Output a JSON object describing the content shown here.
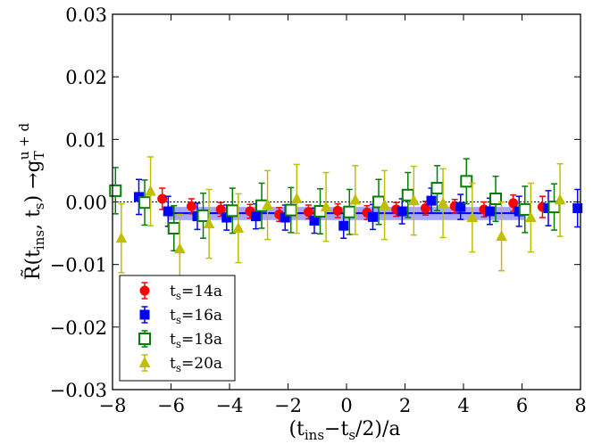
{
  "chart_data": {
    "type": "scatter",
    "title": "",
    "xlabel": "(t_ins−t_s/2)/a",
    "ylabel": "R̃(t_ins, t_s) → g_T^{u+d}",
    "xlabel_main": "(t",
    "xlabel_sub1": "ins",
    "xlabel_mid": "−t",
    "xlabel_sub2": "s",
    "xlabel_tail": "/2)/a",
    "ylabel_main": "R̃(t",
    "ylabel_sub1": "ins",
    "ylabel_mid": ", t",
    "ylabel_sub2": "s",
    "ylabel_tail": ") →g",
    "ylabel_subT": "T",
    "ylabel_sup": "u + d",
    "xlim": [
      -8,
      8
    ],
    "ylim": [
      -0.03,
      0.03
    ],
    "xticks": [
      -8,
      -6,
      -4,
      -2,
      0,
      2,
      4,
      6,
      8
    ],
    "xtick_labels": [
      "−8",
      "−6",
      "−4",
      "−2",
      "0",
      "2",
      "4",
      "6",
      "8"
    ],
    "yticks": [
      -0.03,
      -0.02,
      -0.01,
      0.0,
      0.01,
      0.02,
      0.03
    ],
    "ytick_labels": [
      "−0.03",
      "−0.02",
      "−0.01",
      "0.00",
      "0.01",
      "0.02",
      "0.03"
    ],
    "reference_line_y": 0.0,
    "fit_band": {
      "x_range": [
        -6.1,
        6.1
      ],
      "center": -0.0018,
      "lower": -0.0029,
      "upper": -0.0008,
      "color": "#0000ff"
    },
    "legend_position": "lower-left",
    "series": [
      {
        "name": "t_s=14a",
        "legend_main": "t",
        "legend_sub": "s",
        "legend_tail": "=14a",
        "marker": "circle",
        "color": "#ff0000",
        "filled": true,
        "x": [
          -6,
          -5,
          -4,
          -3,
          -2,
          -1,
          0,
          1,
          2,
          3,
          4,
          5,
          6,
          7
        ],
        "y": [
          0.0005,
          -0.0007,
          -0.0012,
          -0.0015,
          -0.002,
          -0.0016,
          -0.0014,
          -0.0017,
          -0.0012,
          -0.001,
          -0.0007,
          -0.0012,
          -0.0002,
          -0.0008
        ],
        "err": [
          0.0017,
          0.0012,
          0.0011,
          0.0011,
          0.0011,
          0.0011,
          0.0011,
          0.0011,
          0.0011,
          0.0011,
          0.0011,
          0.0012,
          0.0013,
          0.0017
        ]
      },
      {
        "name": "t_s=16a",
        "legend_main": "t",
        "legend_sub": "s",
        "legend_tail": "=16a",
        "marker": "square",
        "color": "#0000ff",
        "filled": true,
        "x": [
          -7,
          -6,
          -5,
          -4,
          -3,
          -2,
          -1,
          0,
          1,
          2,
          3,
          4,
          5,
          6,
          7,
          8
        ],
        "y": [
          0.0008,
          -0.0015,
          -0.0023,
          -0.0025,
          -0.0023,
          -0.0025,
          -0.003,
          -0.0038,
          -0.0024,
          -0.0015,
          0.0002,
          -0.0008,
          -0.0015,
          -0.0015,
          -0.001,
          -0.001
        ],
        "err": [
          0.0028,
          0.0024,
          0.0021,
          0.002,
          0.002,
          0.002,
          0.002,
          0.002,
          0.002,
          0.002,
          0.002,
          0.002,
          0.0021,
          0.0024,
          0.0028,
          0.003
        ]
      },
      {
        "name": "t_s=18a",
        "legend_main": "t",
        "legend_sub": "s",
        "legend_tail": "=18a",
        "marker": "square",
        "color": "#007f00",
        "filled": false,
        "x": [
          -8,
          -7,
          -6,
          -5,
          -4,
          -3,
          -2,
          -1,
          0,
          1,
          2,
          3,
          4,
          5,
          6,
          7
        ],
        "y": [
          0.0018,
          -0.0001,
          -0.0042,
          -0.0022,
          -0.0014,
          -0.0006,
          -0.0013,
          -0.0015,
          -0.0016,
          0.0,
          0.0011,
          0.0022,
          0.0033,
          0.0005,
          -0.0012,
          -0.0008
        ],
        "err": [
          0.0037,
          0.0036,
          0.0036,
          0.0036,
          0.0036,
          0.0036,
          0.0036,
          0.0036,
          0.0036,
          0.0036,
          0.0036,
          0.0036,
          0.0036,
          0.0036,
          0.0037,
          0.0037
        ]
      },
      {
        "name": "t_s=20a",
        "legend_main": "t",
        "legend_sub": "s",
        "legend_tail": "=20a",
        "marker": "triangle",
        "color": "#bfbf00",
        "filled": true,
        "x": [
          -8,
          -7,
          -6,
          -5,
          -4,
          -3,
          -2,
          -1,
          0,
          1,
          2,
          3,
          4,
          5,
          6,
          7
        ],
        "y": [
          -0.0058,
          0.0017,
          -0.0075,
          -0.0035,
          -0.0042,
          -0.0005,
          0.0005,
          -0.0008,
          0.0003,
          -0.0005,
          0.0002,
          -0.0002,
          -0.0025,
          -0.0055,
          -0.0025,
          0.0003
        ],
        "err": [
          0.0055,
          0.0055,
          0.0055,
          0.0055,
          0.0055,
          0.0055,
          0.0055,
          0.0055,
          0.0055,
          0.0055,
          0.0055,
          0.0055,
          0.0055,
          0.0055,
          0.0055,
          0.0058
        ]
      }
    ]
  }
}
